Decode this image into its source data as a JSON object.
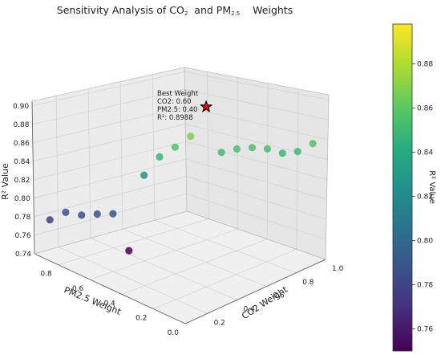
{
  "chart_data": {
    "type": "scatter",
    "title": "Sensitivity Analysis of CO₂  and PM₂.₅   Weights",
    "title_parts": {
      "prefix": "Sensitivity Analysis of CO",
      "co2_sub": "2",
      "middle": "  and PM",
      "pm_sub": "2.5",
      "suffix": "    Weights"
    },
    "xlabel": "CO2 Weight",
    "ylabel": "PM2.5 Weight",
    "zlabel": "R² Value",
    "colorbar_label": "R² Value",
    "x_ticks": [
      "0.2",
      "0.4",
      "0.6",
      "0.8",
      "1.0"
    ],
    "y_ticks": [
      "0.0",
      "0.2",
      "0.4",
      "0.6",
      "0.8"
    ],
    "z_ticks": [
      "0.74",
      "0.76",
      "0.78",
      "0.80",
      "0.82",
      "0.84",
      "0.86",
      "0.88",
      "0.90"
    ],
    "colorbar_ticks": [
      "0.76",
      "0.78",
      "0.80",
      "0.82",
      "0.84",
      "0.86",
      "0.88"
    ],
    "xlim": [
      0.05,
      1.0
    ],
    "ylim": [
      0.0,
      0.95
    ],
    "zlim": [
      0.74,
      0.905
    ],
    "color_range": [
      0.75,
      0.898
    ],
    "colormap": "viridis",
    "grid": true,
    "points": [
      {
        "x": 0.1,
        "y": 0.9,
        "z": 0.778
      },
      {
        "x": 0.15,
        "y": 0.85,
        "z": 0.787
      },
      {
        "x": 0.2,
        "y": 0.8,
        "z": 0.785
      },
      {
        "x": 0.25,
        "y": 0.75,
        "z": 0.787
      },
      {
        "x": 0.3,
        "y": 0.7,
        "z": 0.788
      },
      {
        "x": 0.35,
        "y": 0.65,
        "z": 0.75
      },
      {
        "x": 0.4,
        "y": 0.6,
        "z": 0.829
      },
      {
        "x": 0.45,
        "y": 0.55,
        "z": 0.848
      },
      {
        "x": 0.5,
        "y": 0.5,
        "z": 0.858
      },
      {
        "x": 0.55,
        "y": 0.45,
        "z": 0.869
      },
      {
        "x": 0.6,
        "y": 0.4,
        "z": 0.8988
      },
      {
        "x": 0.65,
        "y": 0.35,
        "z": 0.852
      },
      {
        "x": 0.7,
        "y": 0.3,
        "z": 0.855
      },
      {
        "x": 0.75,
        "y": 0.25,
        "z": 0.856
      },
      {
        "x": 0.8,
        "y": 0.2,
        "z": 0.854
      },
      {
        "x": 0.85,
        "y": 0.15,
        "z": 0.849
      },
      {
        "x": 0.9,
        "y": 0.1,
        "z": 0.85
      },
      {
        "x": 0.95,
        "y": 0.05,
        "z": 0.857
      }
    ],
    "best": {
      "x": 0.6,
      "y": 0.4,
      "z": 0.8988,
      "marker": "star",
      "marker_color": "#ff0000",
      "annotation_lines": [
        "Best Weight",
        "CO2: 0.60",
        "PM2.5: 0.40",
        "R²: 0.8988"
      ]
    }
  }
}
